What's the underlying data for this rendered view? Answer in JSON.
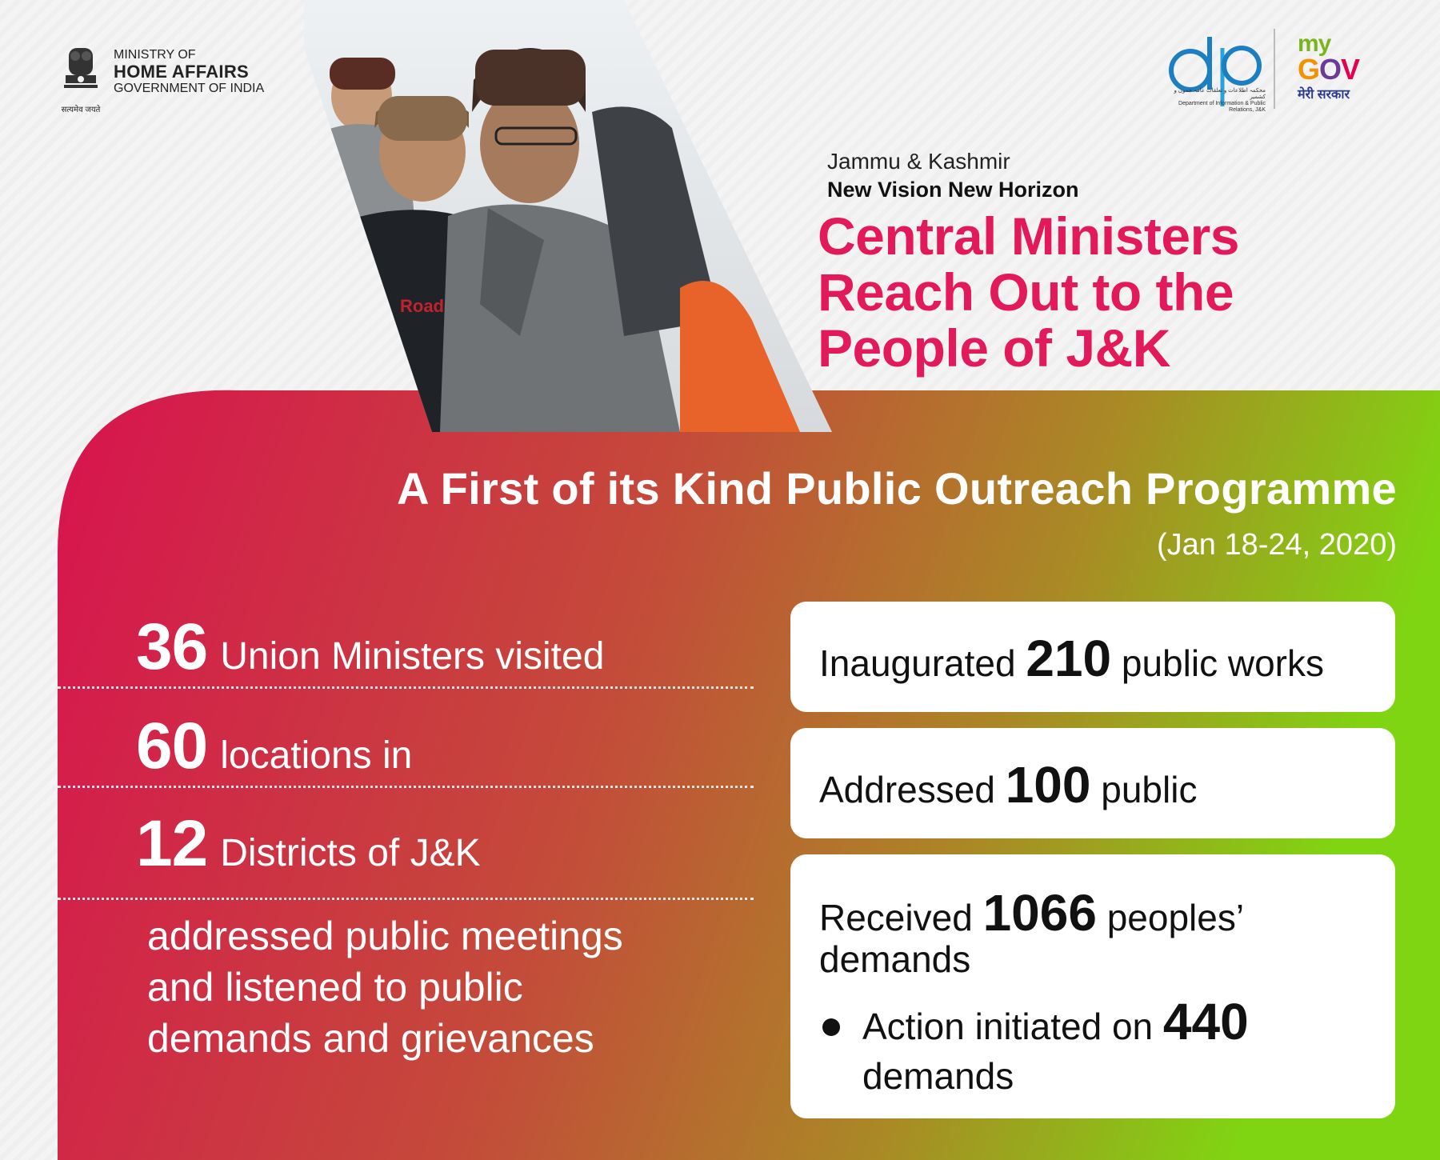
{
  "header": {
    "ministry": {
      "line1": "MINISTRY OF",
      "line2": "HOME AFFAIRS",
      "line3": "GOVERNMENT OF INDIA",
      "emblem_motto": "सत्यमेव जयते",
      "emblem_icon": "national-emblem-icon"
    },
    "dip_logo": {
      "icon": "dip-logo",
      "urdu": "محکمہ اطلاعات و تعلقات عامہ جموں و کشمیر",
      "english": "Department of Information & Public Relations, J&K"
    },
    "mygov_logo": {
      "my": "my",
      "gov_g": "G",
      "gov_o": "O",
      "gov_v": "V",
      "hindi": "मेरी सरकार"
    }
  },
  "title": {
    "region": "Jammu & Kashmir",
    "tagline": "New Vision New Horizon",
    "headline_line1": "Central Ministers",
    "headline_line2": "Reach Out to the",
    "headline_line3": "People of J&K"
  },
  "programme": {
    "title": "A First of its Kind Public Outreach Programme",
    "date": "(Jan 18-24, 2020)"
  },
  "stats": [
    {
      "number": "36",
      "label": "Union Ministers visited"
    },
    {
      "number": "60",
      "label": "locations in"
    },
    {
      "number": "12",
      "label": "Districts of J&K"
    }
  ],
  "description": {
    "line1": "addressed public meetings",
    "line2": "and listened to public",
    "line3": "demands and grievances"
  },
  "cards": [
    {
      "prefix": "Inaugurated",
      "number": "210",
      "suffix": "public works"
    },
    {
      "prefix": "Addressed",
      "number": "100",
      "suffix": "public"
    },
    {
      "prefix": "Received",
      "number": "1066",
      "suffix": "peoples’",
      "line2": "demands",
      "bullet_prefix": "Action initiated on",
      "bullet_number": "440",
      "bullet_line2": "demands"
    }
  ],
  "colors": {
    "accent_pink": "#e2195b",
    "gradient_start": "#d9144f",
    "gradient_end": "#7fd40e"
  }
}
